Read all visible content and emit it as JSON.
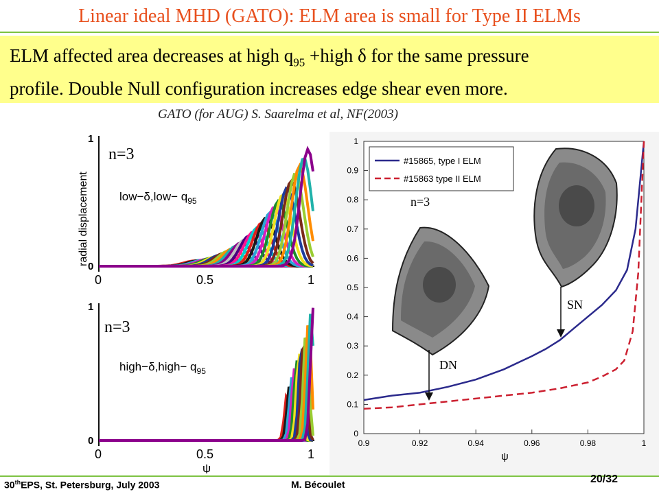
{
  "slide": {
    "title": "Linear ideal MHD (GATO): ELM area is small for Type II ELMs",
    "summary_line1_a": "ELM affected area decreases at high q",
    "summary_line1_sub": "95",
    "summary_line1_b": " +high δ for the same pressure",
    "summary_line2": "profile. Double Null configuration increases edge shear even more.",
    "citation": "GATO (for AUG) S. Saarelma et al, NF(2003)",
    "footer_left_a": "30",
    "footer_left_sup": "th",
    "footer_left_b": "EPS, St. Petersburg, July 2003",
    "footer_author": "M. Bécoulet",
    "page": "20/32"
  },
  "figures": {
    "top_left": {
      "mode_label": "n=3",
      "case_label": "low−δ,low− q",
      "case_sub": "95",
      "ylabel": "radial displacement",
      "yticks": [
        "1",
        "0"
      ],
      "xticks": [
        "0",
        "0.5",
        "1"
      ]
    },
    "bottom_left": {
      "mode_label": "n=3",
      "case_label": "high−δ,high− q",
      "case_sub": "95",
      "xlabel": "ψ",
      "yticks": [
        "1",
        "0"
      ],
      "xticks": [
        "0",
        "0.5",
        "1"
      ]
    },
    "right": {
      "mode_label": "n=3",
      "arrow_sn": "SN",
      "arrow_dn": "DN",
      "xlabel": "ψ"
    }
  },
  "chart_data": {
    "type": "line",
    "xlabel": "ψ",
    "xlim": [
      0.9,
      1.0
    ],
    "ylim": [
      0,
      1
    ],
    "xticks": [
      "0.9",
      "0.92",
      "0.94",
      "0.96",
      "0.98",
      "1"
    ],
    "yticks": [
      "0",
      "0.1",
      "0.2",
      "0.3",
      "0.4",
      "0.5",
      "0.6",
      "0.7",
      "0.8",
      "0.9",
      "1"
    ],
    "legend_position": "top-left",
    "series": [
      {
        "name": "#15865, type I ELM",
        "color": "#2b2a8c",
        "x": [
          0.9,
          0.91,
          0.92,
          0.93,
          0.94,
          0.95,
          0.96,
          0.965,
          0.97,
          0.975,
          0.98,
          0.985,
          0.99,
          0.994,
          0.997,
          1.0
        ],
        "y": [
          0.115,
          0.13,
          0.14,
          0.16,
          0.185,
          0.22,
          0.265,
          0.29,
          0.32,
          0.36,
          0.4,
          0.44,
          0.49,
          0.56,
          0.7,
          1.0
        ]
      },
      {
        "name": "#15863 type II ELM",
        "color": "#cc2030",
        "x": [
          0.9,
          0.91,
          0.92,
          0.93,
          0.94,
          0.95,
          0.96,
          0.97,
          0.98,
          0.985,
          0.99,
          0.993,
          0.996,
          0.998,
          1.0
        ],
        "y": [
          0.085,
          0.09,
          0.1,
          0.11,
          0.12,
          0.13,
          0.14,
          0.155,
          0.175,
          0.195,
          0.22,
          0.25,
          0.35,
          0.55,
          1.0
        ]
      }
    ]
  }
}
